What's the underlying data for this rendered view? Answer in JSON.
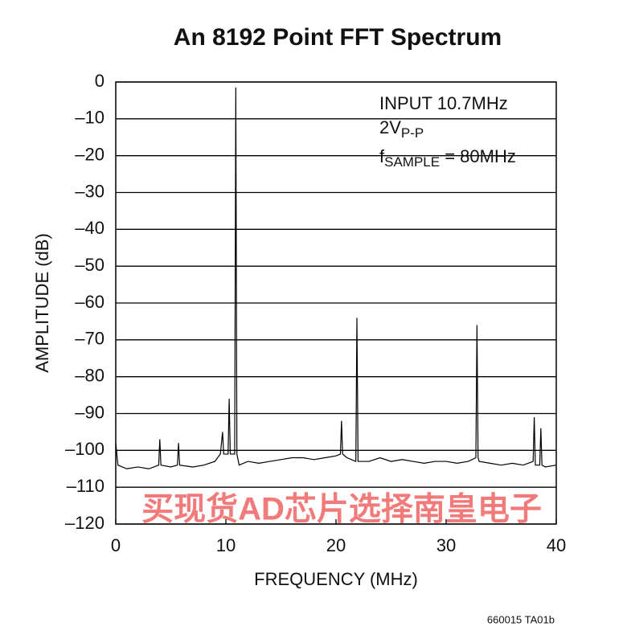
{
  "chart_data": {
    "type": "line",
    "title": "An 8192 Point FFT Spectrum",
    "xlabel": "FREQUENCY (MHz)",
    "ylabel": "AMPLITUDE (dB)",
    "annotations": [
      "INPUT 10.7MHz",
      [
        "2V",
        "P-P"
      ],
      [
        "f",
        "SAMPLE",
        " = 80MHz"
      ]
    ],
    "footnote": "660015 TA01b",
    "watermark": "买现货AD芯片选择南皇电子",
    "color": "#000000",
    "x": [
      0,
      0.2,
      1,
      2,
      3,
      3.9,
      4,
      4.1,
      5,
      5.6,
      5.7,
      5.8,
      7,
      8,
      9,
      9.5,
      9.7,
      9.8,
      10.2,
      10.3,
      10.4,
      10.8,
      10.9,
      11,
      11.2,
      12,
      13,
      14,
      15,
      16,
      17,
      18,
      19,
      20,
      20.4,
      20.5,
      20.6,
      21,
      21.8,
      21.9,
      22,
      23,
      24,
      25,
      26,
      27,
      28,
      29,
      30,
      31,
      32,
      32.7,
      32.8,
      32.9,
      33,
      34,
      35,
      36,
      37,
      37.9,
      38,
      38.1,
      38.5,
      38.6,
      38.7,
      39,
      40
    ],
    "values": [
      -98,
      -104,
      -105,
      -104.5,
      -105,
      -104,
      -97,
      -104,
      -104.5,
      -104,
      -98,
      -104,
      -104.5,
      -104,
      -103,
      -101,
      -95,
      -101,
      -101,
      -86,
      -101,
      -101,
      -1.5,
      -101,
      -104,
      -103,
      -103.5,
      -103,
      -102.5,
      -102,
      -102,
      -102.5,
      -102,
      -101.5,
      -101,
      -92,
      -101,
      -102,
      -103,
      -64,
      -103,
      -103,
      -102,
      -103,
      -102.5,
      -103,
      -103.5,
      -103,
      -103,
      -103.5,
      -103,
      -102,
      -66,
      -102,
      -103,
      -103.5,
      -104,
      -103.5,
      -104,
      -103,
      -91,
      -104,
      -104,
      -94,
      -104,
      -104.5,
      -104
    ],
    "xlim": [
      0,
      40
    ],
    "xticks": [
      0,
      10,
      20,
      30,
      40
    ],
    "ylim": [
      -120,
      0
    ],
    "yticks": [
      0,
      {
        "value": -10,
        "label": "–10"
      },
      {
        "value": -20,
        "label": "–20"
      },
      {
        "value": -30,
        "label": "–30"
      },
      {
        "value": -40,
        "label": "–40"
      },
      {
        "value": -50,
        "label": "–50"
      },
      {
        "value": -60,
        "label": "–60"
      },
      {
        "value": -70,
        "label": "–70"
      },
      {
        "value": -80,
        "label": "–80"
      },
      {
        "value": -90,
        "label": "–90"
      },
      {
        "value": -100,
        "label": "–100"
      },
      {
        "value": -110,
        "label": "–110"
      },
      {
        "value": -120,
        "label": "–120"
      }
    ],
    "grid": true
  }
}
